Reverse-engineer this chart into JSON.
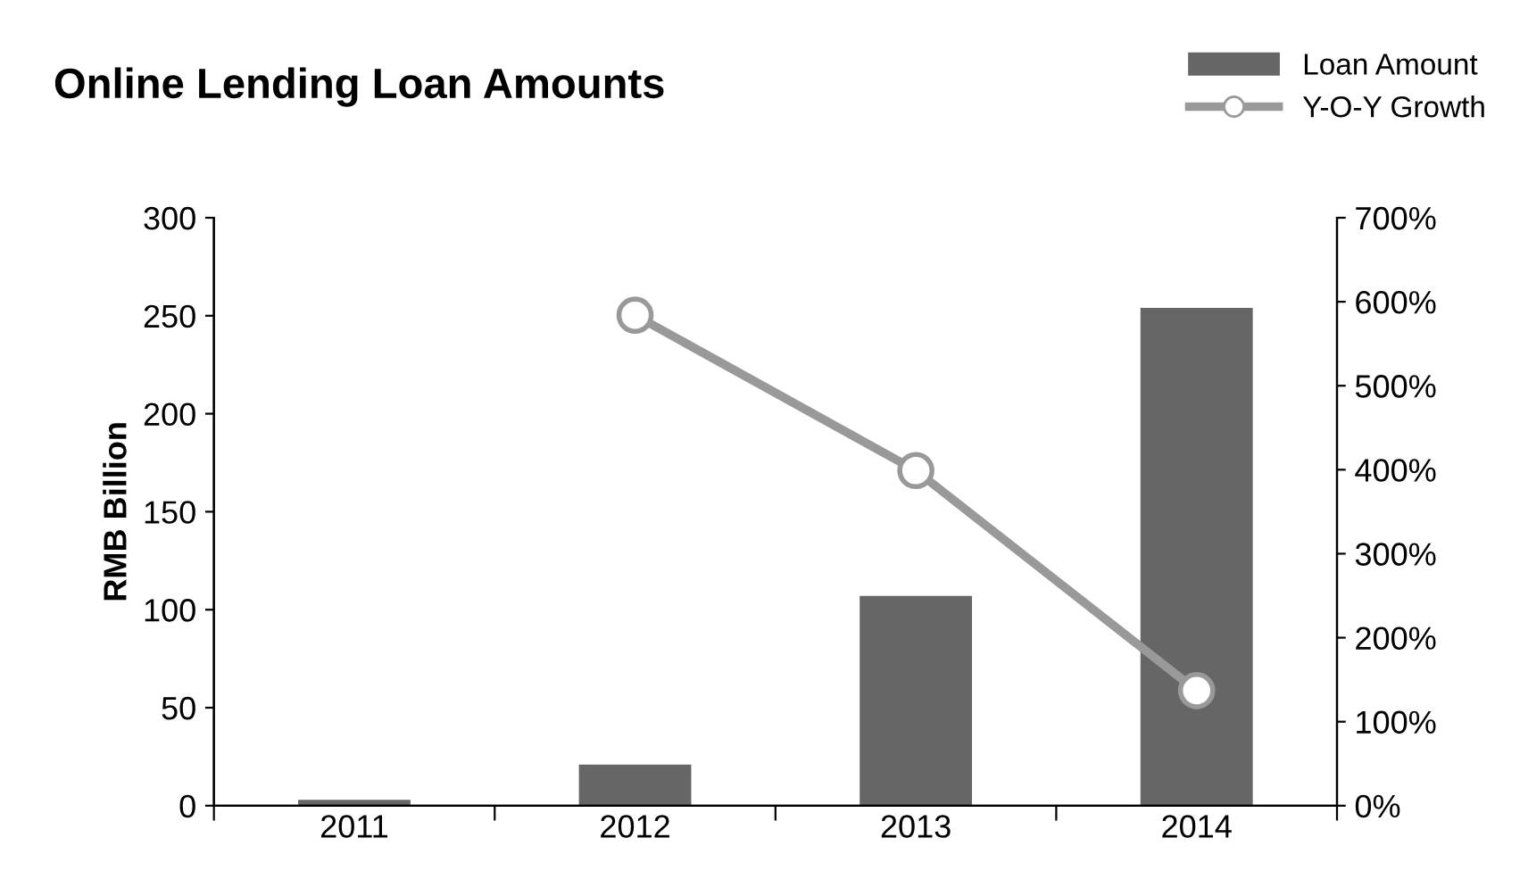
{
  "chart_data": {
    "type": "bar",
    "title": "Online Lending Loan Amounts",
    "ylabel": "RMB Billion",
    "categories": [
      "2011",
      "2012",
      "2013",
      "2014"
    ],
    "series": [
      {
        "name": "Loan Amount",
        "color": "#666666",
        "values": [
          3,
          21,
          107,
          254
        ]
      },
      {
        "name": "Y-O-Y Growth",
        "type": "line",
        "axis": "y2",
        "color": "#999999",
        "marker": "circle",
        "values": [
          null,
          584,
          399,
          137
        ]
      }
    ],
    "ylim": [
      0,
      300
    ],
    "yticks": [
      0,
      50,
      100,
      150,
      200,
      250,
      300
    ],
    "y2lim": [
      0,
      700
    ],
    "y2ticks": [
      {
        "value": 0,
        "label": "0%"
      },
      {
        "value": 100,
        "label": "100%"
      },
      {
        "value": 200,
        "label": "200%"
      },
      {
        "value": 300,
        "label": "300%"
      },
      {
        "value": 400,
        "label": "400%"
      },
      {
        "value": 500,
        "label": "500%"
      },
      {
        "value": 600,
        "label": "600%"
      },
      {
        "value": 700,
        "label": "700%"
      }
    ],
    "grid": false,
    "legend": "top right"
  }
}
